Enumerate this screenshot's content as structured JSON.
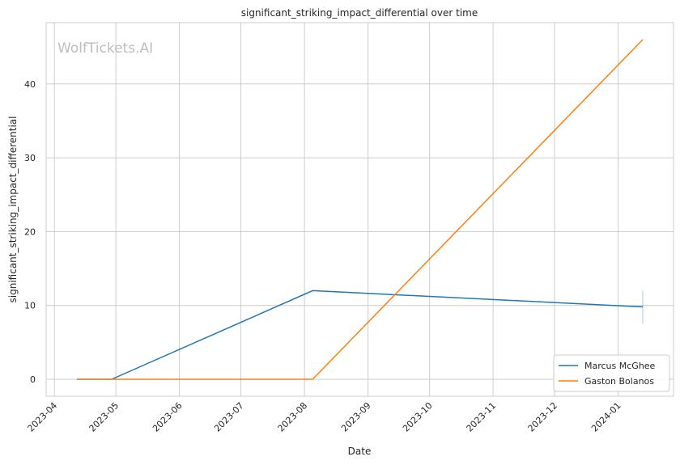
{
  "watermark": "WolfTickets.AI",
  "chart_data": {
    "type": "line",
    "title": "significant_striking_impact_differential over time",
    "xlabel": "Date",
    "ylabel": "significant_striking_impact_differential",
    "x_ticks": [
      "2023-04",
      "2023-05",
      "2023-06",
      "2023-07",
      "2023-08",
      "2023-09",
      "2023-10",
      "2023-11",
      "2023-12",
      "2024-01"
    ],
    "y_ticks": [
      0,
      10,
      20,
      30,
      40
    ],
    "xlim": [
      "2023-03-28",
      "2024-01-28"
    ],
    "ylim": [
      -2.3,
      48.3
    ],
    "grid": true,
    "legend_position": "bottom-right",
    "series": [
      {
        "name": "Marcus McGhee",
        "color": "#1f77b4",
        "points": [
          {
            "date": "2023-04-12",
            "value": 0
          },
          {
            "date": "2023-04-29",
            "value": 0
          },
          {
            "date": "2023-08-05",
            "value": 12
          },
          {
            "date": "2024-01-13",
            "value": 9.8
          }
        ],
        "error_bar": {
          "date": "2024-01-13",
          "low": 7.5,
          "high": 12
        }
      },
      {
        "name": "Gaston Bolanos",
        "color": "#ff7f0e",
        "points": [
          {
            "date": "2023-04-12",
            "value": 0
          },
          {
            "date": "2023-08-05",
            "value": 0
          },
          {
            "date": "2024-01-13",
            "value": 46
          }
        ]
      }
    ]
  }
}
